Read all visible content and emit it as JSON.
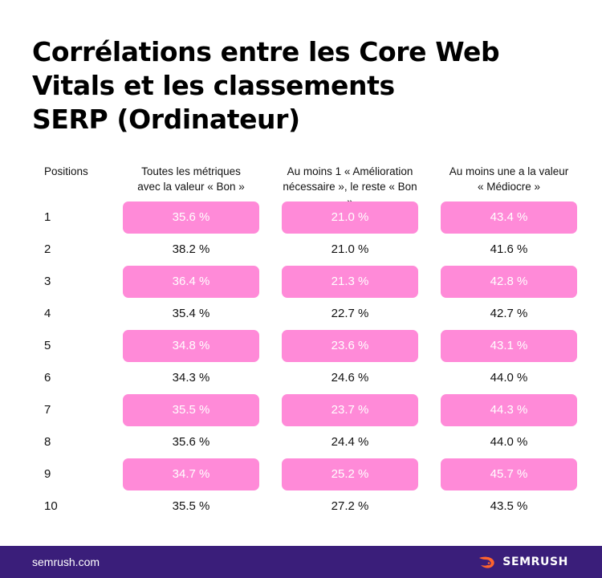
{
  "title_lines": [
    "Corrélations entre les Core Web",
    "Vitals et les classements",
    "SERP (Ordinateur)"
  ],
  "chart_data": {
    "type": "table",
    "title": "Corrélations entre les Core Web Vitals et les classements SERP (Ordinateur)",
    "row_header": "Positions",
    "columns": [
      {
        "lines": [
          "Toutes les métriques",
          "avec la valeur « Bon »"
        ]
      },
      {
        "lines": [
          "Au moins 1 « Amélioration",
          "nécessaire », le reste « Bon »"
        ]
      },
      {
        "lines": [
          "Au moins une a la valeur",
          "« Médiocre »"
        ]
      }
    ],
    "rows": [
      {
        "position": "1",
        "values": [
          "35.6 %",
          "21.0 %",
          "43.4 %"
        ],
        "highlight": true
      },
      {
        "position": "2",
        "values": [
          "38.2 %",
          "21.0 %",
          "41.6 %"
        ],
        "highlight": false
      },
      {
        "position": "3",
        "values": [
          "36.4 %",
          "21.3 %",
          "42.8 %"
        ],
        "highlight": true
      },
      {
        "position": "4",
        "values": [
          "35.4 %",
          "22.7 %",
          "42.7 %"
        ],
        "highlight": false
      },
      {
        "position": "5",
        "values": [
          "34.8 %",
          "23.6 %",
          "43.1 %"
        ],
        "highlight": true
      },
      {
        "position": "6",
        "values": [
          "34.3 %",
          "24.6 %",
          "44.0 %"
        ],
        "highlight": false
      },
      {
        "position": "7",
        "values": [
          "35.5 %",
          "23.7 %",
          "44.3 %"
        ],
        "highlight": true
      },
      {
        "position": "8",
        "values": [
          "35.6 %",
          "24.4 %",
          "44.0 %"
        ],
        "highlight": false
      },
      {
        "position": "9",
        "values": [
          "34.7 %",
          "25.2 %",
          "45.7 %"
        ],
        "highlight": true
      },
      {
        "position": "10",
        "values": [
          "35.5 %",
          "27.2 %",
          "43.5 %"
        ],
        "highlight": false
      }
    ]
  },
  "colors": {
    "highlight": "#ff8ad8",
    "footer_bg": "#3a1e7a",
    "brand_accent": "#ff642d"
  },
  "footer": {
    "url": "semrush.com",
    "brand": "SEMRUSH",
    "brand_icon": "semrush-fire-icon"
  }
}
